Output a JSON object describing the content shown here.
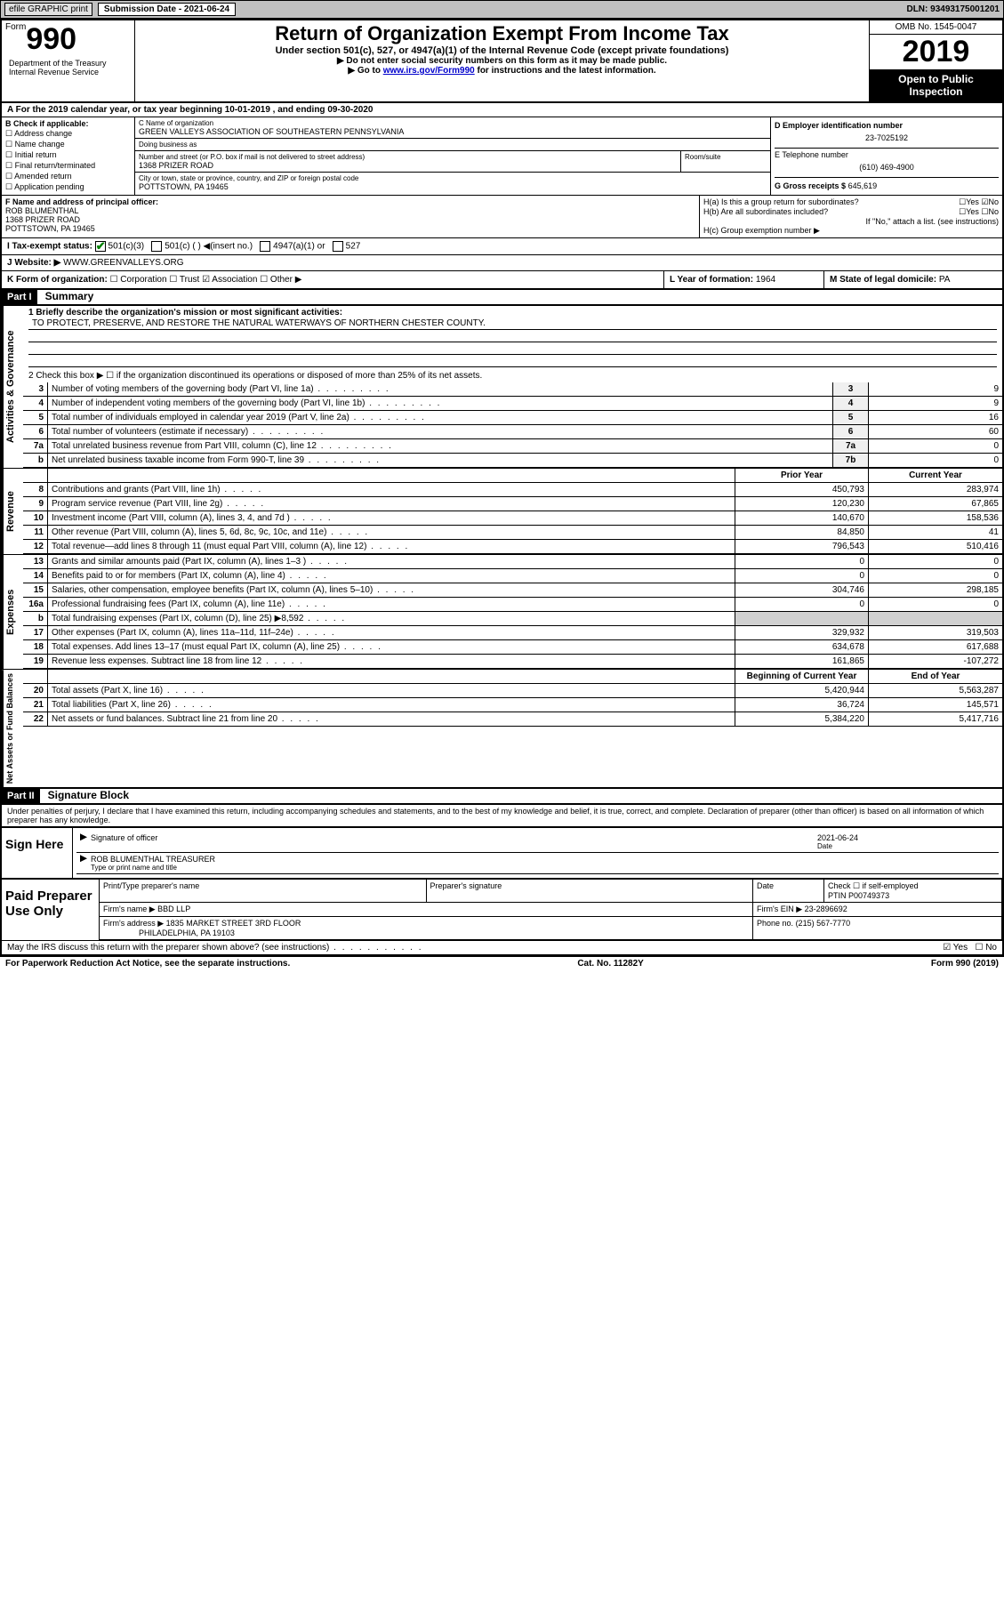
{
  "header_bar": {
    "graphic": "efile GRAPHIC print",
    "sub_label": "Submission Date - 2021-06-24",
    "dln": "DLN: 93493175001201"
  },
  "top": {
    "form_label": "Form",
    "form_no": "990",
    "dept": "Department of the Treasury\nInternal Revenue Service",
    "title": "Return of Organization Exempt From Income Tax",
    "subtitle": "Under section 501(c), 527, or 4947(a)(1) of the Internal Revenue Code (except private foundations)",
    "instr1": "▶ Do not enter social security numbers on this form as it may be made public.",
    "instr2_pre": "▶ Go to ",
    "instr2_link": "www.irs.gov/Form990",
    "instr2_post": " for instructions and the latest information.",
    "omb": "OMB No. 1545-0047",
    "year": "2019",
    "open": "Open to Public Inspection"
  },
  "row_a": "A For the 2019 calendar year, or tax year beginning 10-01-2019  , and ending 09-30-2020",
  "box_b": {
    "label": "B Check if applicable:",
    "opts": [
      "☐ Address change",
      "☐ Name change",
      "☐ Initial return",
      "☐ Final return/terminated",
      "☐ Amended return",
      "☐ Application pending"
    ]
  },
  "box_c": {
    "name_label": "C Name of organization",
    "name": "GREEN VALLEYS ASSOCIATION OF SOUTHEASTERN PENNSYLVANIA",
    "dba_label": "Doing business as",
    "dba": "",
    "street_label": "Number and street (or P.O. box if mail is not delivered to street address)",
    "room_label": "Room/suite",
    "street": "1368 PRIZER ROAD",
    "city_label": "City or town, state or province, country, and ZIP or foreign postal code",
    "city": "POTTSTOWN, PA  19465"
  },
  "box_d": {
    "ein_label": "D Employer identification number",
    "ein": "23-7025192",
    "tel_label": "E Telephone number",
    "tel": "(610) 469-4900",
    "gross_label": "G Gross receipts $",
    "gross": "645,619"
  },
  "box_f": {
    "label": "F Name and address of principal officer:",
    "name": "ROB BLUMENTHAL",
    "addr1": "1368 PRIZER ROAD",
    "addr2": "POTTSTOWN, PA  19465"
  },
  "box_h": {
    "a_label": "H(a)  Is this a group return for subordinates?",
    "a_yes": "☐Yes",
    "a_no": "☑No",
    "b_label": "H(b)  Are all subordinates included?",
    "b_yes": "☐Yes",
    "b_no": "☐No",
    "b_note": "If \"No,\" attach a list. (see instructions)",
    "c_label": "H(c)  Group exemption number ▶"
  },
  "row_i": {
    "label": "I  Tax-exempt status:",
    "opt1": "501(c)(3)",
    "opt2": "501(c) (  ) ◀(insert no.)",
    "opt3": "4947(a)(1) or",
    "opt4": "527"
  },
  "row_j": {
    "label": "J  Website: ▶",
    "val": "WWW.GREENVALLEYS.ORG"
  },
  "row_k": {
    "label": "K Form of organization:",
    "opts": "☐ Corporation  ☐ Trust  ☑ Association  ☐ Other ▶",
    "l_label": "L Year of formation:",
    "l_val": "1964",
    "m_label": "M State of legal domicile:",
    "m_val": "PA"
  },
  "part1": {
    "header": "Part I",
    "title": "Summary"
  },
  "governance": {
    "side": "Activities & Governance",
    "line1_label": "1  Briefly describe the organization's mission or most significant activities:",
    "line1_val": "TO PROTECT, PRESERVE, AND RESTORE THE NATURAL WATERWAYS OF NORTHERN CHESTER COUNTY.",
    "line2_label": "2  Check this box ▶ ☐ if the organization discontinued its operations or disposed of more than 25% of its net assets.",
    "lines": [
      {
        "n": "3",
        "label": "Number of voting members of the governing body (Part VI, line 1a)",
        "ref": "3",
        "val": "9"
      },
      {
        "n": "4",
        "label": "Number of independent voting members of the governing body (Part VI, line 1b)",
        "ref": "4",
        "val": "9"
      },
      {
        "n": "5",
        "label": "Total number of individuals employed in calendar year 2019 (Part V, line 2a)",
        "ref": "5",
        "val": "16"
      },
      {
        "n": "6",
        "label": "Total number of volunteers (estimate if necessary)",
        "ref": "6",
        "val": "60"
      },
      {
        "n": "7a",
        "label": "Total unrelated business revenue from Part VIII, column (C), line 12",
        "ref": "7a",
        "val": "0"
      },
      {
        "n": "b",
        "label": "Net unrelated business taxable income from Form 990-T, line 39",
        "ref": "7b",
        "val": "0"
      }
    ]
  },
  "col_headers": {
    "prior": "Prior Year",
    "current": "Current Year"
  },
  "revenue": {
    "side": "Revenue",
    "lines": [
      {
        "n": "8",
        "label": "Contributions and grants (Part VIII, line 1h)",
        "prior": "450,793",
        "current": "283,974"
      },
      {
        "n": "9",
        "label": "Program service revenue (Part VIII, line 2g)",
        "prior": "120,230",
        "current": "67,865"
      },
      {
        "n": "10",
        "label": "Investment income (Part VIII, column (A), lines 3, 4, and 7d )",
        "prior": "140,670",
        "current": "158,536"
      },
      {
        "n": "11",
        "label": "Other revenue (Part VIII, column (A), lines 5, 6d, 8c, 9c, 10c, and 11e)",
        "prior": "84,850",
        "current": "41"
      },
      {
        "n": "12",
        "label": "Total revenue—add lines 8 through 11 (must equal Part VIII, column (A), line 12)",
        "prior": "796,543",
        "current": "510,416"
      }
    ]
  },
  "expenses": {
    "side": "Expenses",
    "lines": [
      {
        "n": "13",
        "label": "Grants and similar amounts paid (Part IX, column (A), lines 1–3 )",
        "prior": "0",
        "current": "0"
      },
      {
        "n": "14",
        "label": "Benefits paid to or for members (Part IX, column (A), line 4)",
        "prior": "0",
        "current": "0"
      },
      {
        "n": "15",
        "label": "Salaries, other compensation, employee benefits (Part IX, column (A), lines 5–10)",
        "prior": "304,746",
        "current": "298,185"
      },
      {
        "n": "16a",
        "label": "Professional fundraising fees (Part IX, column (A), line 11e)",
        "prior": "0",
        "current": "0"
      },
      {
        "n": "b",
        "label": "Total fundraising expenses (Part IX, column (D), line 25) ▶8,592",
        "prior": "",
        "current": ""
      },
      {
        "n": "17",
        "label": "Other expenses (Part IX, column (A), lines 11a–11d, 11f–24e)",
        "prior": "329,932",
        "current": "319,503"
      },
      {
        "n": "18",
        "label": "Total expenses. Add lines 13–17 (must equal Part IX, column (A), line 25)",
        "prior": "634,678",
        "current": "617,688"
      },
      {
        "n": "19",
        "label": "Revenue less expenses. Subtract line 18 from line 12",
        "prior": "161,865",
        "current": "-107,272"
      }
    ]
  },
  "col_headers2": {
    "begin": "Beginning of Current Year",
    "end": "End of Year"
  },
  "netassets": {
    "side": "Net Assets or Fund Balances",
    "lines": [
      {
        "n": "20",
        "label": "Total assets (Part X, line 16)",
        "prior": "5,420,944",
        "current": "5,563,287"
      },
      {
        "n": "21",
        "label": "Total liabilities (Part X, line 26)",
        "prior": "36,724",
        "current": "145,571"
      },
      {
        "n": "22",
        "label": "Net assets or fund balances. Subtract line 21 from line 20",
        "prior": "5,384,220",
        "current": "5,417,716"
      }
    ]
  },
  "part2": {
    "header": "Part II",
    "title": "Signature Block"
  },
  "penalties": "Under penalties of perjury, I declare that I have examined this return, including accompanying schedules and statements, and to the best of my knowledge and belief, it is true, correct, and complete. Declaration of preparer (other than officer) is based on all information of which preparer has any knowledge.",
  "sign": {
    "side": "Sign Here",
    "sig_label": "Signature of officer",
    "date_label": "Date",
    "date_val": "2021-06-24",
    "name": "ROB BLUMENTHAL TREASURER",
    "name_label": "Type or print name and title"
  },
  "preparer": {
    "side": "Paid Preparer Use Only",
    "h1": "Print/Type preparer's name",
    "h2": "Preparer's signature",
    "h3": "Date",
    "h4a": "Check ☐ if self-employed",
    "h4b": "PTIN",
    "ptin": "P00749373",
    "firm_label": "Firm's name  ▶",
    "firm": "BBD LLP",
    "ein_label": "Firm's EIN ▶",
    "ein": "23-2896692",
    "addr_label": "Firm's address ▶",
    "addr1": "1835 MARKET STREET 3RD FLOOR",
    "addr2": "PHILADELPHIA, PA  19103",
    "phone_label": "Phone no.",
    "phone": "(215) 567-7770"
  },
  "discuss": {
    "label": "May the IRS discuss this return with the preparer shown above? (see instructions)",
    "yes": "☑ Yes",
    "no": "☐ No"
  },
  "footer": {
    "left": "For Paperwork Reduction Act Notice, see the separate instructions.",
    "mid": "Cat. No. 11282Y",
    "right": "Form 990 (2019)"
  }
}
